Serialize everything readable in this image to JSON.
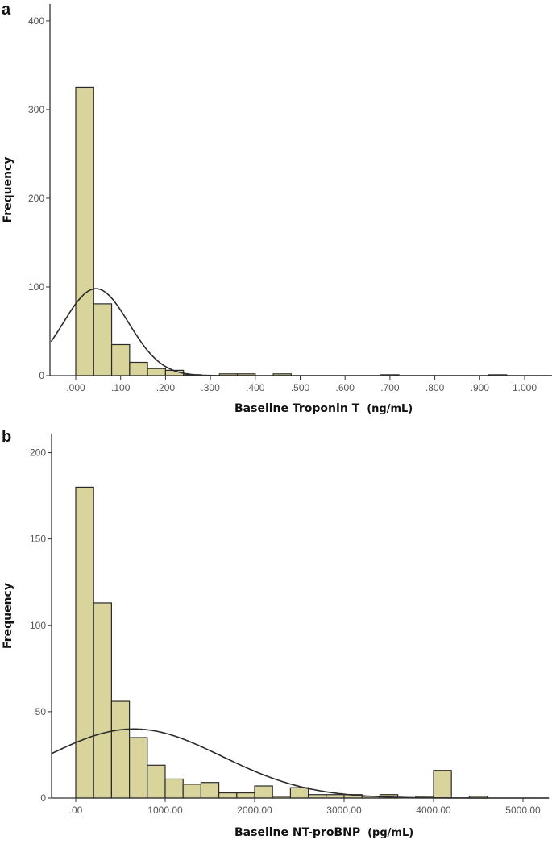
{
  "colors": {
    "bar_fill": "#d8d49c",
    "bar_stroke": "#2a2a2a",
    "curve": "#2a2a2a",
    "axis": "#333333"
  },
  "chart_data": [
    {
      "type": "bar",
      "panel_label": "a",
      "xlabel": "Baseline Troponin T",
      "xunit": "(ng/mL)",
      "ylabel": "Frequency",
      "xlim": [
        -0.055,
        1.07
      ],
      "ylim": [
        0,
        419
      ],
      "grid": false,
      "x_ticks": [
        0,
        0.1,
        0.2,
        0.3,
        0.4,
        0.5,
        0.6,
        0.7,
        0.8,
        0.9,
        1.0
      ],
      "x_tick_labels": [
        ".000",
        ".100",
        ".200",
        ".300",
        ".400",
        ".500",
        ".600",
        ".700",
        ".800",
        ".900",
        "1.000"
      ],
      "y_ticks": [
        0,
        100,
        200,
        300,
        400
      ],
      "y_tick_labels": [
        "0",
        "100",
        "200",
        "300",
        "400"
      ],
      "bin_width": 0.04,
      "bins": [
        {
          "start": 0.0,
          "count": 325
        },
        {
          "start": 0.04,
          "count": 81
        },
        {
          "start": 0.08,
          "count": 35
        },
        {
          "start": 0.12,
          "count": 15
        },
        {
          "start": 0.16,
          "count": 8
        },
        {
          "start": 0.2,
          "count": 6
        },
        {
          "start": 0.24,
          "count": 1
        },
        {
          "start": 0.32,
          "count": 2
        },
        {
          "start": 0.36,
          "count": 2
        },
        {
          "start": 0.44,
          "count": 2
        },
        {
          "start": 0.68,
          "count": 1
        },
        {
          "start": 0.92,
          "count": 1
        }
      ],
      "normal_curve": {
        "mean": 0.045,
        "sd": 0.073,
        "peak": 98
      }
    },
    {
      "type": "bar",
      "panel_label": "b",
      "xlabel": "Baseline NT-proBNP",
      "xunit": "(pg/mL)",
      "ylabel": "Frequency",
      "xlim": [
        -270,
        5290
      ],
      "ylim": [
        0,
        211
      ],
      "grid": false,
      "x_ticks": [
        0,
        1000,
        2000,
        3000,
        4000,
        5000
      ],
      "x_tick_labels": [
        ".00",
        "1000.00",
        "2000.00",
        "3000.00",
        "4000.00",
        "5000.00"
      ],
      "y_ticks": [
        0,
        50,
        100,
        150,
        200
      ],
      "y_tick_labels": [
        "0",
        "50",
        "100",
        "150",
        "200"
      ],
      "bin_width": 200,
      "bins": [
        {
          "start": 0,
          "count": 180
        },
        {
          "start": 200,
          "count": 113
        },
        {
          "start": 400,
          "count": 56
        },
        {
          "start": 600,
          "count": 35
        },
        {
          "start": 800,
          "count": 19
        },
        {
          "start": 1000,
          "count": 11
        },
        {
          "start": 1200,
          "count": 8
        },
        {
          "start": 1400,
          "count": 9
        },
        {
          "start": 1600,
          "count": 3
        },
        {
          "start": 1800,
          "count": 3
        },
        {
          "start": 2000,
          "count": 7
        },
        {
          "start": 2200,
          "count": 1
        },
        {
          "start": 2400,
          "count": 6
        },
        {
          "start": 2600,
          "count": 2
        },
        {
          "start": 2800,
          "count": 2
        },
        {
          "start": 3000,
          "count": 2
        },
        {
          "start": 3200,
          "count": 1
        },
        {
          "start": 3400,
          "count": 2
        },
        {
          "start": 3800,
          "count": 1
        },
        {
          "start": 4000,
          "count": 16
        },
        {
          "start": 4400,
          "count": 1
        }
      ],
      "normal_curve": {
        "mean": 650,
        "sd": 980,
        "peak": 40
      }
    }
  ]
}
